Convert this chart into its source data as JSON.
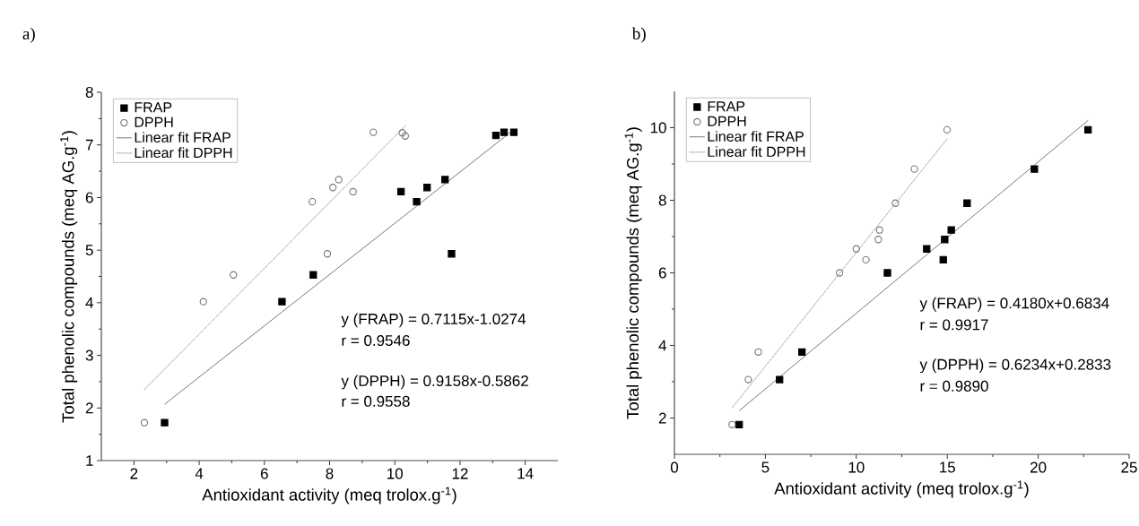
{
  "chart_data": [
    {
      "type": "scatter",
      "title": "a)",
      "xlabel": "Antioxidant activity (meq trolox.g$^{-1}$)",
      "ylabel": "Total phenolic compounds (meq AG.g$^{-1}$)",
      "xlim": [
        1,
        15
      ],
      "ylim": [
        1,
        8
      ],
      "xticks": [
        2,
        4,
        6,
        8,
        10,
        12,
        14
      ],
      "yticks": [
        1,
        2,
        3,
        4,
        5,
        6,
        7,
        8
      ],
      "grid": false,
      "legend": "top left",
      "annotations": [
        "y (FRAP) = 0.7115x-1.0274",
        "r = 0.9546",
        "y (DPPH) = 0.9158x-0.5862",
        "r = 0.9558"
      ],
      "series": [
        {
          "name": "FRAP",
          "type": "scatter",
          "marker": "square",
          "color": "#000000",
          "x": [
            2.94,
            6.54,
            7.5,
            10.19,
            10.67,
            10.99,
            11.54,
            11.74,
            13.1,
            13.35,
            13.65
          ],
          "values": [
            1.72,
            4.02,
            4.53,
            6.11,
            5.92,
            6.19,
            6.34,
            4.93,
            7.18,
            7.24,
            7.24
          ]
        },
        {
          "name": "DPPH",
          "type": "scatter",
          "marker": "circle",
          "color": "#777777",
          "x": [
            2.32,
            4.13,
            5.05,
            7.47,
            7.93,
            8.1,
            8.28,
            8.72,
            9.34,
            10.23,
            10.32
          ],
          "values": [
            1.72,
            4.02,
            4.53,
            5.92,
            4.93,
            6.19,
            6.34,
            6.11,
            7.24,
            7.23,
            7.17
          ]
        },
        {
          "name": "Linear fit FRAP",
          "type": "line",
          "line_style": "solid",
          "color": "#777777",
          "x": [
            2.94,
            13.65
          ],
          "values": [
            2.07,
            7.29
          ]
        },
        {
          "name": "Linear fit DPPH",
          "type": "line",
          "line_style": "dotted",
          "color": "#999999",
          "x": [
            2.32,
            10.35
          ],
          "values": [
            2.35,
            7.38
          ]
        }
      ]
    },
    {
      "type": "scatter",
      "title": "b)",
      "xlabel": "Antioxidant activity (meq trolox.g$^{-1}$)",
      "ylabel": "Total phenolic compounds (meq AG.g$^{-1}$)",
      "xlim": [
        0,
        25
      ],
      "ylim": [
        1,
        11
      ],
      "xticks": [
        0,
        5,
        10,
        15,
        20,
        25
      ],
      "yticks": [
        2,
        4,
        6,
        8,
        10
      ],
      "grid": false,
      "legend": "top left",
      "annotations": [
        "y (FRAP) = 0.4180x+0.6834",
        "r = 0.9917",
        "y (DPPH) = 0.6234x+0.2833",
        "r = 0.9890"
      ],
      "series": [
        {
          "name": "FRAP",
          "type": "scatter",
          "marker": "square",
          "color": "#000000",
          "x": [
            3.56,
            5.78,
            7.01,
            11.71,
            13.87,
            14.78,
            14.86,
            15.22,
            16.09,
            19.79,
            22.74
          ],
          "values": [
            1.82,
            3.06,
            3.82,
            6.0,
            6.66,
            6.36,
            6.92,
            7.18,
            7.92,
            8.86,
            9.94
          ]
        },
        {
          "name": "DPPH",
          "type": "scatter",
          "marker": "circle",
          "color": "#777777",
          "x": [
            3.17,
            4.06,
            4.61,
            9.08,
            10.0,
            10.53,
            11.21,
            11.28,
            12.15,
            13.19,
            14.99
          ],
          "values": [
            1.82,
            3.06,
            3.82,
            6.0,
            6.66,
            6.36,
            6.92,
            7.18,
            7.92,
            8.86,
            9.94
          ]
        },
        {
          "name": "Linear fit FRAP",
          "type": "line",
          "line_style": "solid",
          "color": "#777777",
          "x": [
            3.56,
            22.74
          ],
          "values": [
            2.2,
            10.2
          ]
        },
        {
          "name": "Linear fit DPPH",
          "type": "line",
          "line_style": "dotted",
          "color": "#999999",
          "x": [
            3.17,
            14.99
          ],
          "values": [
            2.28,
            9.69
          ]
        }
      ]
    }
  ]
}
